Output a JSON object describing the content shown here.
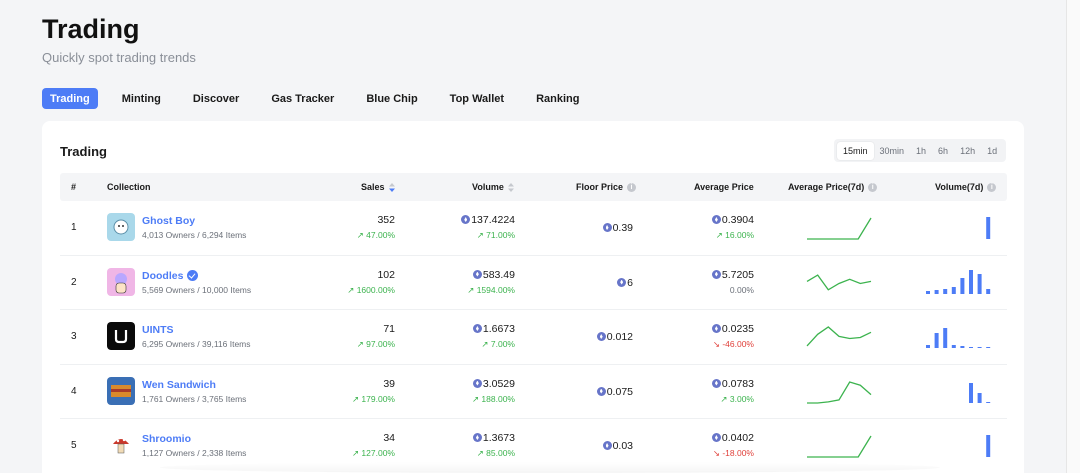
{
  "page": {
    "title": "Trading",
    "subtitle": "Quickly spot trading trends"
  },
  "tabs": [
    "Trading",
    "Minting",
    "Discover",
    "Gas Tracker",
    "Blue Chip",
    "Top Wallet",
    "Ranking"
  ],
  "active_tab": "Trading",
  "card": {
    "title": "Trading",
    "time_filters": [
      "15min",
      "30min",
      "1h",
      "6h",
      "12h",
      "1d"
    ],
    "active_filter": "15min"
  },
  "table": {
    "headers": {
      "rank": "#",
      "collection": "Collection",
      "sales": "Sales",
      "volume": "Volume",
      "floor_price": "Floor Price",
      "average_price": "Average Price",
      "average_price_7d": "Average Price(7d)",
      "volume_7d": "Volume(7d)"
    },
    "rows": [
      {
        "rank": "1",
        "name": "Ghost Boy",
        "verified": false,
        "owners": "4,013 Owners / 6,294 Items",
        "sales": "352",
        "sales_change": "↗ 47.00%",
        "sales_dir": "up",
        "volume": "137.4224",
        "volume_change": "↗ 71.00%",
        "volume_dir": "up",
        "floor": "0.39",
        "avg": "0.3904",
        "avg_change": "↗ 16.00%",
        "avg_dir": "up",
        "avg7d": [
          0,
          0,
          0,
          0,
          0,
          1
        ],
        "vol7d": [
          0,
          0,
          0,
          0,
          0,
          0,
          0,
          22
        ]
      },
      {
        "rank": "2",
        "name": "Doodles",
        "verified": true,
        "owners": "5,569 Owners / 10,000 Items",
        "sales": "102",
        "sales_change": "↗ 1600.00%",
        "sales_dir": "up",
        "volume": "583.49",
        "volume_change": "↗ 1594.00%",
        "volume_dir": "up",
        "floor": "6",
        "avg": "5.7205",
        "avg_change": "0.00%",
        "avg_dir": "flat",
        "avg7d": [
          0.6,
          0.9,
          0.2,
          0.5,
          0.7,
          0.5,
          0.6
        ],
        "vol7d": [
          3,
          4,
          5,
          7,
          16,
          24,
          20,
          5
        ]
      },
      {
        "rank": "3",
        "name": "UINTS",
        "verified": false,
        "owners": "6,295 Owners / 39,116 Items",
        "sales": "71",
        "sales_change": "↗ 97.00%",
        "sales_dir": "up",
        "volume": "1.6673",
        "volume_change": "↗ 7.00%",
        "volume_dir": "up",
        "floor": "0.012",
        "avg": "0.0235",
        "avg_change": "↘ -46.00%",
        "avg_dir": "down",
        "avg7d": [
          0.1,
          0.65,
          1.0,
          0.55,
          0.45,
          0.5,
          0.75
        ],
        "vol7d": [
          3,
          15,
          20,
          3,
          2,
          1,
          1,
          1
        ]
      },
      {
        "rank": "4",
        "name": "Wen Sandwich",
        "verified": false,
        "owners": "1,761 Owners / 3,765 Items",
        "sales": "39",
        "sales_change": "↗ 179.00%",
        "sales_dir": "up",
        "volume": "3.0529",
        "volume_change": "↗ 188.00%",
        "volume_dir": "up",
        "floor": "0.075",
        "avg": "0.0783",
        "avg_change": "↗ 3.00%",
        "avg_dir": "up",
        "avg7d": [
          0,
          0,
          0.05,
          0.15,
          1.0,
          0.85,
          0.4
        ],
        "vol7d": [
          0,
          0,
          0,
          0,
          0,
          20,
          10,
          1
        ]
      },
      {
        "rank": "5",
        "name": "Shroomio",
        "verified": false,
        "owners": "1,127 Owners / 2,338 Items",
        "sales": "34",
        "sales_change": "↗ 127.00%",
        "sales_dir": "up",
        "volume": "1.3673",
        "volume_change": "↗ 85.00%",
        "volume_dir": "up",
        "floor": "0.03",
        "avg": "0.0402",
        "avg_change": "↘ -18.00%",
        "avg_dir": "down",
        "avg7d": [
          0,
          0,
          0,
          0,
          0,
          1
        ],
        "vol7d": [
          0,
          0,
          0,
          0,
          0,
          0,
          0,
          22
        ]
      }
    ]
  },
  "colors": {
    "accent": "#4d7cf6",
    "up": "#3cb34e",
    "down": "#e0413b",
    "spark_line": "#3cb34e",
    "bar": "#4d7cf6"
  }
}
